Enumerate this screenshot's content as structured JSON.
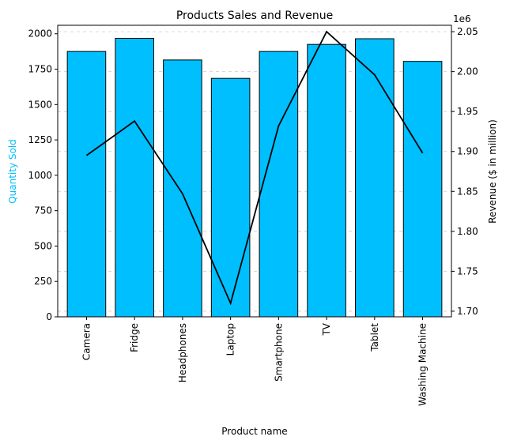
{
  "chart_data": {
    "type": "bar",
    "title": "Products Sales and Revenue",
    "xlabel": "Product name",
    "ylabel": "Quantity Sold",
    "ylabel_right": "Revenue ($ in million)",
    "right_axis_multiplier": "1e6",
    "categories": [
      "Camera",
      "Fridge",
      "Headphones",
      "Laptop",
      "Smartphone",
      "TV",
      "Tablet",
      "Washing Machine"
    ],
    "series": [
      {
        "type": "bar",
        "axis": "left",
        "values": [
          1875,
          1968,
          1815,
          1685,
          1875,
          1925,
          1965,
          1805
        ]
      },
      {
        "type": "line",
        "axis": "right",
        "values": [
          1895000,
          1938000,
          1847000,
          1710000,
          1932000,
          2050000,
          1996000,
          1898000
        ]
      }
    ],
    "ylim": [
      0,
      2060
    ],
    "yticks": [
      "0",
      "250",
      "500",
      "750",
      "1000",
      "1250",
      "1500",
      "1750",
      "2000"
    ],
    "ylim_right": [
      1693000,
      2058000
    ],
    "yticks_right": [
      "1.70",
      "1.75",
      "1.80",
      "1.85",
      "1.90",
      "1.95",
      "2.00",
      "2.05"
    ],
    "grid": "horizontal dashed (right axis)",
    "legend": "none",
    "colors": {
      "bar_fill": "#00BFFF",
      "bar_edge": "#000000",
      "line": "#000000",
      "ylabel_color": "#00BFFF",
      "grid": "#cccccc"
    }
  }
}
